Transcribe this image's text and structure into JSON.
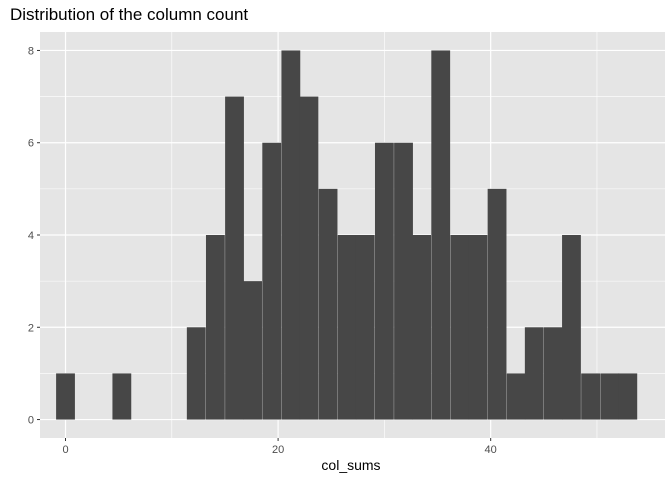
{
  "chart_data": {
    "type": "bar",
    "subtype": "histogram",
    "title": "Distribution of the column count",
    "xlabel": "col_sums",
    "ylabel": "",
    "xlim": [
      -2.4,
      56.4
    ],
    "ylim": [
      -0.4,
      8.4
    ],
    "x_ticks": [
      0,
      20,
      40
    ],
    "y_ticks": [
      0,
      2,
      4,
      6,
      8
    ],
    "grid": true,
    "panel_background": "#e5e5e5",
    "grid_color": "#ffffff",
    "bar_color": "#474747",
    "bin_width": 1.77,
    "bin_centers": [
      0.0,
      5.3,
      12.3,
      14.1,
      15.9,
      17.6,
      19.4,
      21.2,
      22.9,
      24.7,
      26.5,
      28.2,
      30.0,
      31.8,
      33.5,
      35.3,
      37.1,
      38.8,
      40.6,
      42.4,
      44.1,
      45.9,
      47.6,
      49.4,
      51.2,
      52.9
    ],
    "values": [
      1,
      1,
      2,
      4,
      7,
      3,
      6,
      8,
      7,
      5,
      4,
      4,
      6,
      6,
      4,
      8,
      4,
      4,
      5,
      1,
      2,
      2,
      4,
      1,
      1,
      1
    ],
    "low_bin_values": [
      1,
      1,
      1,
      4,
      4,
      4,
      2,
      1,
      1
    ]
  }
}
